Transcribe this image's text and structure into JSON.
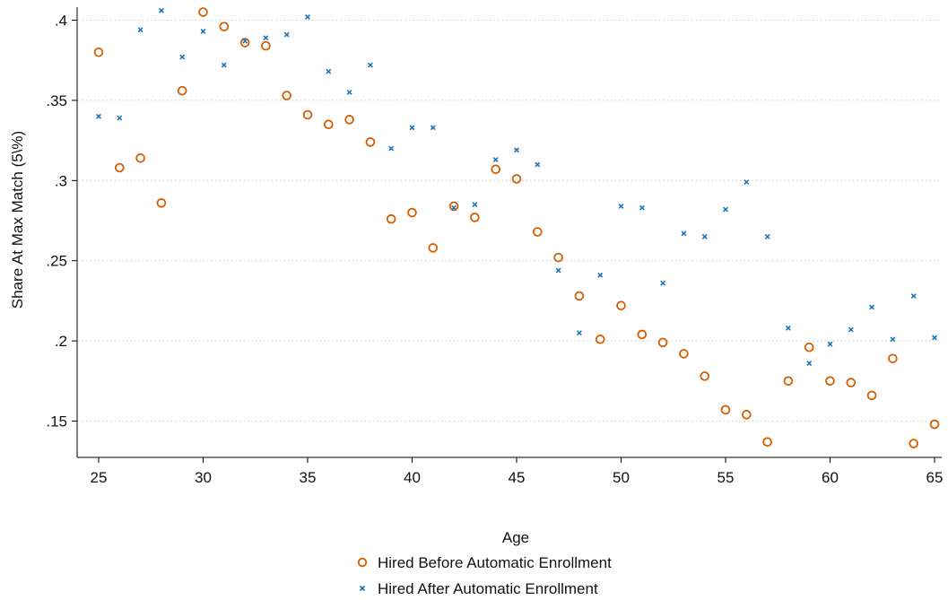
{
  "chart_data": {
    "type": "scatter",
    "xlabel": "Age",
    "ylabel": "Share At Max Match (5\\%)",
    "xlim": [
      25,
      65
    ],
    "ylim": [
      0.135,
      0.41
    ],
    "xticks": [
      "25",
      "30",
      "35",
      "40",
      "45",
      "50",
      "55",
      "60",
      "65"
    ],
    "xtick_values": [
      25,
      30,
      35,
      40,
      45,
      50,
      55,
      60,
      65
    ],
    "yticks": [
      ".15",
      ".2",
      ".25",
      ".3",
      ".35",
      ".4"
    ],
    "ytick_values": [
      0.15,
      0.2,
      0.25,
      0.3,
      0.35,
      0.4
    ],
    "grid": "horizontal-dotted",
    "legend_position": "bottom",
    "series": [
      {
        "name": "Hired Before Automatic Enrollment",
        "marker": "hollow-circle",
        "color": "#d55e00",
        "points": [
          [
            25,
            0.38
          ],
          [
            26,
            0.308
          ],
          [
            27,
            0.314
          ],
          [
            28,
            0.286
          ],
          [
            29,
            0.356
          ],
          [
            30,
            0.405
          ],
          [
            31,
            0.396
          ],
          [
            32,
            0.386
          ],
          [
            33,
            0.384
          ],
          [
            34,
            0.353
          ],
          [
            35,
            0.341
          ],
          [
            36,
            0.335
          ],
          [
            37,
            0.338
          ],
          [
            38,
            0.324
          ],
          [
            39,
            0.276
          ],
          [
            40,
            0.28
          ],
          [
            41,
            0.258
          ],
          [
            42,
            0.284
          ],
          [
            43,
            0.277
          ],
          [
            44,
            0.307
          ],
          [
            45,
            0.301
          ],
          [
            46,
            0.268
          ],
          [
            47,
            0.252
          ],
          [
            48,
            0.228
          ],
          [
            49,
            0.201
          ],
          [
            50,
            0.222
          ],
          [
            51,
            0.204
          ],
          [
            52,
            0.199
          ],
          [
            53,
            0.192
          ],
          [
            54,
            0.178
          ],
          [
            55,
            0.157
          ],
          [
            56,
            0.154
          ],
          [
            57,
            0.137
          ],
          [
            58,
            0.175
          ],
          [
            59,
            0.196
          ],
          [
            60,
            0.175
          ],
          [
            61,
            0.174
          ],
          [
            62,
            0.166
          ],
          [
            63,
            0.189
          ],
          [
            64,
            0.136
          ],
          [
            65,
            0.148
          ]
        ]
      },
      {
        "name": "Hired After Automatic Enrollment",
        "marker": "x",
        "color": "#1a76b8",
        "points": [
          [
            25,
            0.34
          ],
          [
            26,
            0.339
          ],
          [
            27,
            0.394
          ],
          [
            28,
            0.406
          ],
          [
            29,
            0.377
          ],
          [
            30,
            0.393
          ],
          [
            31,
            0.372
          ],
          [
            32,
            0.387
          ],
          [
            33,
            0.389
          ],
          [
            34,
            0.391
          ],
          [
            35,
            0.402
          ],
          [
            36,
            0.368
          ],
          [
            37,
            0.355
          ],
          [
            38,
            0.372
          ],
          [
            39,
            0.32
          ],
          [
            40,
            0.333
          ],
          [
            41,
            0.333
          ],
          [
            42,
            0.283
          ],
          [
            43,
            0.285
          ],
          [
            44,
            0.313
          ],
          [
            45,
            0.319
          ],
          [
            46,
            0.31
          ],
          [
            47,
            0.244
          ],
          [
            48,
            0.205
          ],
          [
            49,
            0.241
          ],
          [
            50,
            0.284
          ],
          [
            51,
            0.283
          ],
          [
            52,
            0.236
          ],
          [
            53,
            0.267
          ],
          [
            54,
            0.265
          ],
          [
            55,
            0.282
          ],
          [
            56,
            0.299
          ],
          [
            57,
            0.265
          ],
          [
            58,
            0.208
          ],
          [
            59,
            0.186
          ],
          [
            60,
            0.198
          ],
          [
            61,
            0.207
          ],
          [
            62,
            0.221
          ],
          [
            63,
            0.201
          ],
          [
            64,
            0.228
          ],
          [
            65,
            0.202
          ]
        ]
      }
    ]
  }
}
